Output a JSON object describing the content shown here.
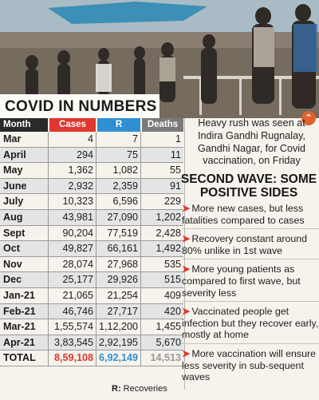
{
  "banner": {
    "title": "COVID IN NUMBERS"
  },
  "caption": {
    "text": "Heavy rush was seen at Indira Gandhi Rugnalay, Gandhi Nagar, for Covid vaccination, on Friday",
    "icon": "chevron-up-icon"
  },
  "table": {
    "headers": {
      "month": "Month",
      "cases": "Cases",
      "r": "R",
      "deaths": "Deaths"
    },
    "rows": [
      {
        "month": "Mar",
        "cases": "4",
        "r": "7",
        "deaths": "1"
      },
      {
        "month": "April",
        "cases": "294",
        "r": "75",
        "deaths": "11"
      },
      {
        "month": "May",
        "cases": "1,362",
        "r": "1,082",
        "deaths": "55"
      },
      {
        "month": "June",
        "cases": "2,932",
        "r": "2,359",
        "deaths": "91"
      },
      {
        "month": "July",
        "cases": "10,323",
        "r": "6,596",
        "deaths": "229"
      },
      {
        "month": "Aug",
        "cases": "43,981",
        "r": "27,090",
        "deaths": "1,202"
      },
      {
        "month": "Sept",
        "cases": "90,204",
        "r": "77,519",
        "deaths": "2,428"
      },
      {
        "month": "Oct",
        "cases": "49,827",
        "r": "66,161",
        "deaths": "1,492"
      },
      {
        "month": "Nov",
        "cases": "28,074",
        "r": "27,968",
        "deaths": "535"
      },
      {
        "month": "Dec",
        "cases": "25,177",
        "r": "29,926",
        "deaths": "515"
      },
      {
        "month": "Jan-21",
        "cases": "21,065",
        "r": "21,254",
        "deaths": "409"
      },
      {
        "month": "Feb-21",
        "cases": "46,746",
        "r": "27,717",
        "deaths": "420"
      },
      {
        "month": "Mar-21",
        "cases": "1,55,574",
        "r": "1,12,200",
        "deaths": "1,455"
      },
      {
        "month": "Apr-21",
        "cases": "3,83,545",
        "r": "2,92,195",
        "deaths": "5,670"
      }
    ],
    "total": {
      "month": "TOTAL",
      "cases": "8,59,108",
      "r": "6,92,149",
      "deaths": "14,513"
    },
    "legend_key": "R:",
    "legend_text": "Recoveries",
    "colors": {
      "cases": "#e0362f",
      "r": "#2f8fd0",
      "deaths": "#7a7a7a",
      "month": "#2a2a2a"
    }
  },
  "second_wave": {
    "title_bold": "SECOND WAVE:",
    "title_rest": "SOME POSITIVE SIDES",
    "points": [
      "More new cases, but less fatalities compared to cases",
      "Recovery constant around 80% unlike in 1st wave",
      "More young patients as compared to first wave, but severity less",
      "Vaccinated people get infection but they recover early, mostly at home",
      "More vaccination will ensure less severity in sub-sequent waves"
    ]
  }
}
